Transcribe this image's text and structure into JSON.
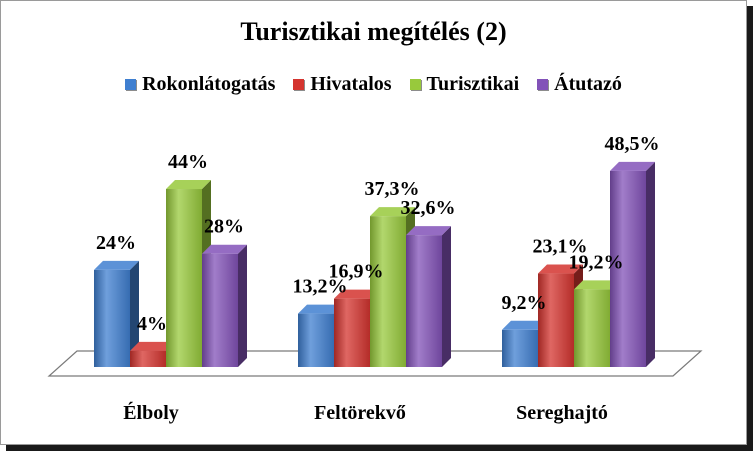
{
  "chart_data": {
    "type": "bar",
    "title": "Turisztikai megítélés (2)",
    "categories": [
      "Élboly",
      "Feltörekvő",
      "Sereghajtó"
    ],
    "series": [
      {
        "name": "Rokonlátogatás",
        "color": "#3f7fd0",
        "values": [
          24,
          13.2,
          9.2
        ],
        "labels": [
          "24%",
          "13,2%",
          "9,2%"
        ]
      },
      {
        "name": "Hivatalos",
        "color": "#d4342f",
        "values": [
          4,
          16.9,
          23.1
        ],
        "labels": [
          "4%",
          "16,9%",
          "23,1%"
        ]
      },
      {
        "name": "Turisztikai",
        "color": "#98c93c",
        "values": [
          44,
          37.3,
          19.2
        ],
        "labels": [
          "44%",
          "37,3%",
          "19,2%"
        ]
      },
      {
        "name": "Átutazó",
        "color": "#8252b8",
        "values": [
          28,
          32.6,
          48.5
        ],
        "labels": [
          "28%",
          "32,6%",
          "48,5%"
        ]
      }
    ],
    "ylim": [
      0,
      50
    ],
    "grid": false,
    "legend_position": "top"
  }
}
